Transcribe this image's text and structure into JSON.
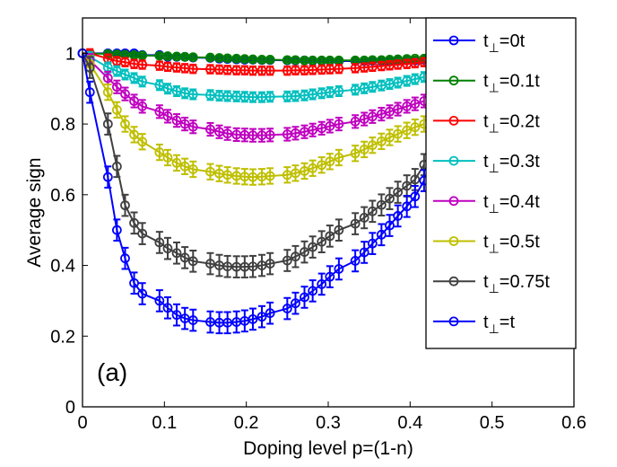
{
  "chart_data": {
    "type": "line",
    "title": "",
    "xlabel": "Doping level p=(1-n)",
    "ylabel": "Average sign",
    "xlim": [
      0,
      0.6
    ],
    "ylim": [
      0,
      1.1
    ],
    "xticks": [
      0,
      0.1,
      0.2,
      0.3,
      0.4,
      0.5,
      0.6
    ],
    "xtick_labels": [
      "0",
      "0.1",
      "0.2",
      "0.3",
      "0.4",
      "0.5",
      "0.6"
    ],
    "yticks": [
      0,
      0.2,
      0.4,
      0.6,
      0.8,
      1
    ],
    "ytick_labels": [
      "0",
      "0.2",
      "0.4",
      "0.6",
      "0.8",
      "1"
    ],
    "grid": false,
    "legend_position": "top-right",
    "annotation": "(a)",
    "x": [
      0,
      0.009,
      0.031,
      0.042,
      0.052,
      0.063,
      0.073,
      0.094,
      0.104,
      0.115,
      0.125,
      0.135,
      0.156,
      0.167,
      0.177,
      0.188,
      0.198,
      0.208,
      0.219,
      0.229,
      0.25,
      0.26,
      0.271,
      0.281,
      0.292,
      0.302,
      0.313,
      0.333,
      0.344,
      0.354,
      0.365,
      0.375,
      0.385,
      0.396,
      0.406,
      0.417
    ],
    "series": [
      {
        "name_main": "t",
        "name_sub": "⊥",
        "name_tail": "=0t",
        "color": "#0000ff",
        "values": [
          1.0,
          1.0,
          1.0,
          1.0,
          1.0,
          1.0,
          0.995,
          0.995,
          0.99,
          0.99,
          0.99,
          0.988,
          0.987,
          0.985,
          0.984,
          0.983,
          0.982,
          0.982,
          0.981,
          0.981,
          0.98,
          0.98,
          0.98,
          0.979,
          0.979,
          0.979,
          0.978,
          0.978,
          0.978,
          0.979,
          0.979,
          0.979,
          0.98,
          0.98,
          0.98,
          0.982
        ],
        "err": 0.005
      },
      {
        "name_main": "t",
        "name_sub": "⊥",
        "name_tail": "=0.1t",
        "color": "#008000",
        "values": [
          1.0,
          1.0,
          0.998,
          0.997,
          0.996,
          0.995,
          0.994,
          0.993,
          0.992,
          0.991,
          0.99,
          0.989,
          0.988,
          0.987,
          0.986,
          0.985,
          0.984,
          0.983,
          0.982,
          0.982,
          0.981,
          0.981,
          0.98,
          0.98,
          0.98,
          0.98,
          0.98,
          0.98,
          0.98,
          0.981,
          0.981,
          0.982,
          0.983,
          0.984,
          0.985,
          0.985
        ],
        "err": 0.006
      },
      {
        "name_main": "t",
        "name_sub": "⊥",
        "name_tail": "=0.2t",
        "color": "#ff0000",
        "values": [
          1.0,
          1.0,
          0.985,
          0.978,
          0.975,
          0.97,
          0.968,
          0.965,
          0.962,
          0.96,
          0.958,
          0.956,
          0.955,
          0.954,
          0.953,
          0.952,
          0.952,
          0.951,
          0.951,
          0.951,
          0.951,
          0.952,
          0.952,
          0.953,
          0.954,
          0.955,
          0.956,
          0.958,
          0.96,
          0.962,
          0.964,
          0.966,
          0.968,
          0.97,
          0.972,
          0.975
        ],
        "err": 0.012
      },
      {
        "name_main": "t",
        "name_sub": "⊥",
        "name_tail": "=0.3t",
        "color": "#00bfbf",
        "values": [
          1.0,
          0.99,
          0.96,
          0.95,
          0.94,
          0.93,
          0.92,
          0.91,
          0.9,
          0.893,
          0.887,
          0.884,
          0.882,
          0.88,
          0.879,
          0.878,
          0.877,
          0.876,
          0.876,
          0.877,
          0.878,
          0.879,
          0.881,
          0.884,
          0.887,
          0.89,
          0.893,
          0.897,
          0.901,
          0.905,
          0.909,
          0.913,
          0.917,
          0.922,
          0.927,
          0.933
        ],
        "err": 0.014
      },
      {
        "name_main": "t",
        "name_sub": "⊥",
        "name_tail": "=0.4t",
        "color": "#bf00bf",
        "values": [
          1.0,
          0.98,
          0.93,
          0.905,
          0.885,
          0.865,
          0.85,
          0.835,
          0.822,
          0.81,
          0.8,
          0.792,
          0.785,
          0.778,
          0.773,
          0.77,
          0.769,
          0.768,
          0.768,
          0.769,
          0.771,
          0.774,
          0.778,
          0.783,
          0.788,
          0.794,
          0.8,
          0.807,
          0.814,
          0.821,
          0.828,
          0.835,
          0.842,
          0.85,
          0.857,
          0.865
        ],
        "err": 0.018
      },
      {
        "name_main": "t",
        "name_sub": "⊥",
        "name_tail": "=0.5t",
        "color": "#bfbf00",
        "values": [
          1.0,
          0.97,
          0.89,
          0.84,
          0.8,
          0.77,
          0.75,
          0.72,
          0.705,
          0.69,
          0.68,
          0.672,
          0.665,
          0.66,
          0.656,
          0.653,
          0.651,
          0.65,
          0.651,
          0.653,
          0.656,
          0.661,
          0.667,
          0.675,
          0.684,
          0.694,
          0.705,
          0.717,
          0.728,
          0.74,
          0.751,
          0.762,
          0.772,
          0.782,
          0.791,
          0.8
        ],
        "err": 0.022
      },
      {
        "name_main": "t",
        "name_sub": "⊥",
        "name_tail": "=0.75t",
        "color": "#404040",
        "values": [
          1.0,
          0.96,
          0.8,
          0.68,
          0.57,
          0.52,
          0.49,
          0.465,
          0.448,
          0.435,
          0.422,
          0.412,
          0.405,
          0.4,
          0.397,
          0.396,
          0.396,
          0.397,
          0.4,
          0.405,
          0.414,
          0.425,
          0.438,
          0.452,
          0.467,
          0.483,
          0.5,
          0.518,
          0.535,
          0.553,
          0.571,
          0.589,
          0.607,
          0.625,
          0.643,
          0.685
        ],
        "err": 0.03
      },
      {
        "name_main": "t",
        "name_sub": "⊥",
        "name_tail": "=t",
        "color": "#0000ff",
        "values": [
          1.0,
          0.89,
          0.65,
          0.5,
          0.42,
          0.35,
          0.32,
          0.3,
          0.28,
          0.26,
          0.25,
          0.245,
          0.24,
          0.238,
          0.238,
          0.24,
          0.243,
          0.248,
          0.255,
          0.265,
          0.278,
          0.293,
          0.31,
          0.328,
          0.347,
          0.368,
          0.39,
          0.413,
          0.437,
          0.462,
          0.487,
          0.513,
          0.54,
          0.567,
          0.595,
          0.64
        ],
        "err": 0.03
      }
    ]
  }
}
